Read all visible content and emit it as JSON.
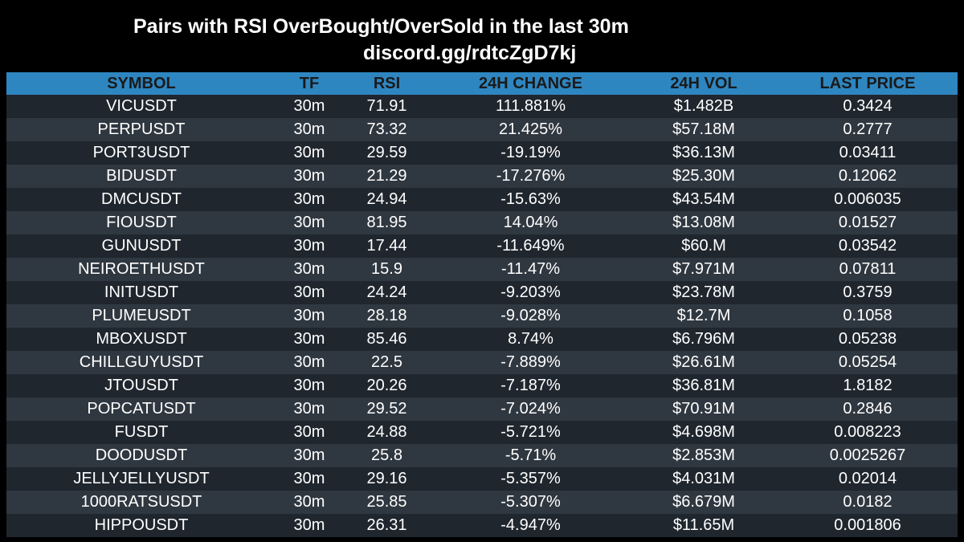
{
  "header": {
    "title": "Pairs with RSI OverBought/OverSold in the last 30m",
    "subtitle": "discord.gg/rdtcZgD7kj"
  },
  "table": {
    "columns": [
      "SYMBOL",
      "TF",
      "RSI",
      "24H CHANGE",
      "24H VOL",
      "LAST PRICE"
    ],
    "rows": [
      [
        "VICUSDT",
        "30m",
        "71.91",
        "111.881%",
        "$1.482B",
        "0.3424"
      ],
      [
        "PERPUSDT",
        "30m",
        "73.32",
        "21.425%",
        "$57.18M",
        "0.2777"
      ],
      [
        "PORT3USDT",
        "30m",
        "29.59",
        "-19.19%",
        "$36.13M",
        "0.03411"
      ],
      [
        "BIDUSDT",
        "30m",
        "21.29",
        "-17.276%",
        "$25.30M",
        "0.12062"
      ],
      [
        "DMCUSDT",
        "30m",
        "24.94",
        "-15.63%",
        "$43.54M",
        "0.006035"
      ],
      [
        "FIOUSDT",
        "30m",
        "81.95",
        "14.04%",
        "$13.08M",
        "0.01527"
      ],
      [
        "GUNUSDT",
        "30m",
        "17.44",
        "-11.649%",
        "$60.M",
        "0.03542"
      ],
      [
        "NEIROETHUSDT",
        "30m",
        "15.9",
        "-11.47%",
        "$7.971M",
        "0.07811"
      ],
      [
        "INITUSDT",
        "30m",
        "24.24",
        "-9.203%",
        "$23.78M",
        "0.3759"
      ],
      [
        "PLUMEUSDT",
        "30m",
        "28.18",
        "-9.028%",
        "$12.7M",
        "0.1058"
      ],
      [
        "MBOXUSDT",
        "30m",
        "85.46",
        "8.74%",
        "$6.796M",
        "0.05238"
      ],
      [
        "CHILLGUYUSDT",
        "30m",
        "22.5",
        "-7.889%",
        "$26.61M",
        "0.05254"
      ],
      [
        "JTOUSDT",
        "30m",
        "20.26",
        "-7.187%",
        "$36.81M",
        "1.8182"
      ],
      [
        "POPCATUSDT",
        "30m",
        "29.52",
        "-7.024%",
        "$70.91M",
        "0.2846"
      ],
      [
        "FUSDT",
        "30m",
        "24.88",
        "-5.721%",
        "$4.698M",
        "0.008223"
      ],
      [
        "DOODUSDT",
        "30m",
        "25.8",
        "-5.71%",
        "$2.853M",
        "0.0025267"
      ],
      [
        "JELLYJELLYUSDT",
        "30m",
        "29.16",
        "-5.357%",
        "$4.031M",
        "0.02014"
      ],
      [
        "1000RATSUSDT",
        "30m",
        "25.85",
        "-5.307%",
        "$6.679M",
        "0.0182"
      ],
      [
        "HIPPOUSDT",
        "30m",
        "26.31",
        "-4.947%",
        "$11.65M",
        "0.001806"
      ]
    ]
  },
  "colors": {
    "background": "#000000",
    "header_row": "#2e86c1",
    "row_dark": "#1f262e",
    "row_light": "#2f3740",
    "text": "#ffffff"
  }
}
